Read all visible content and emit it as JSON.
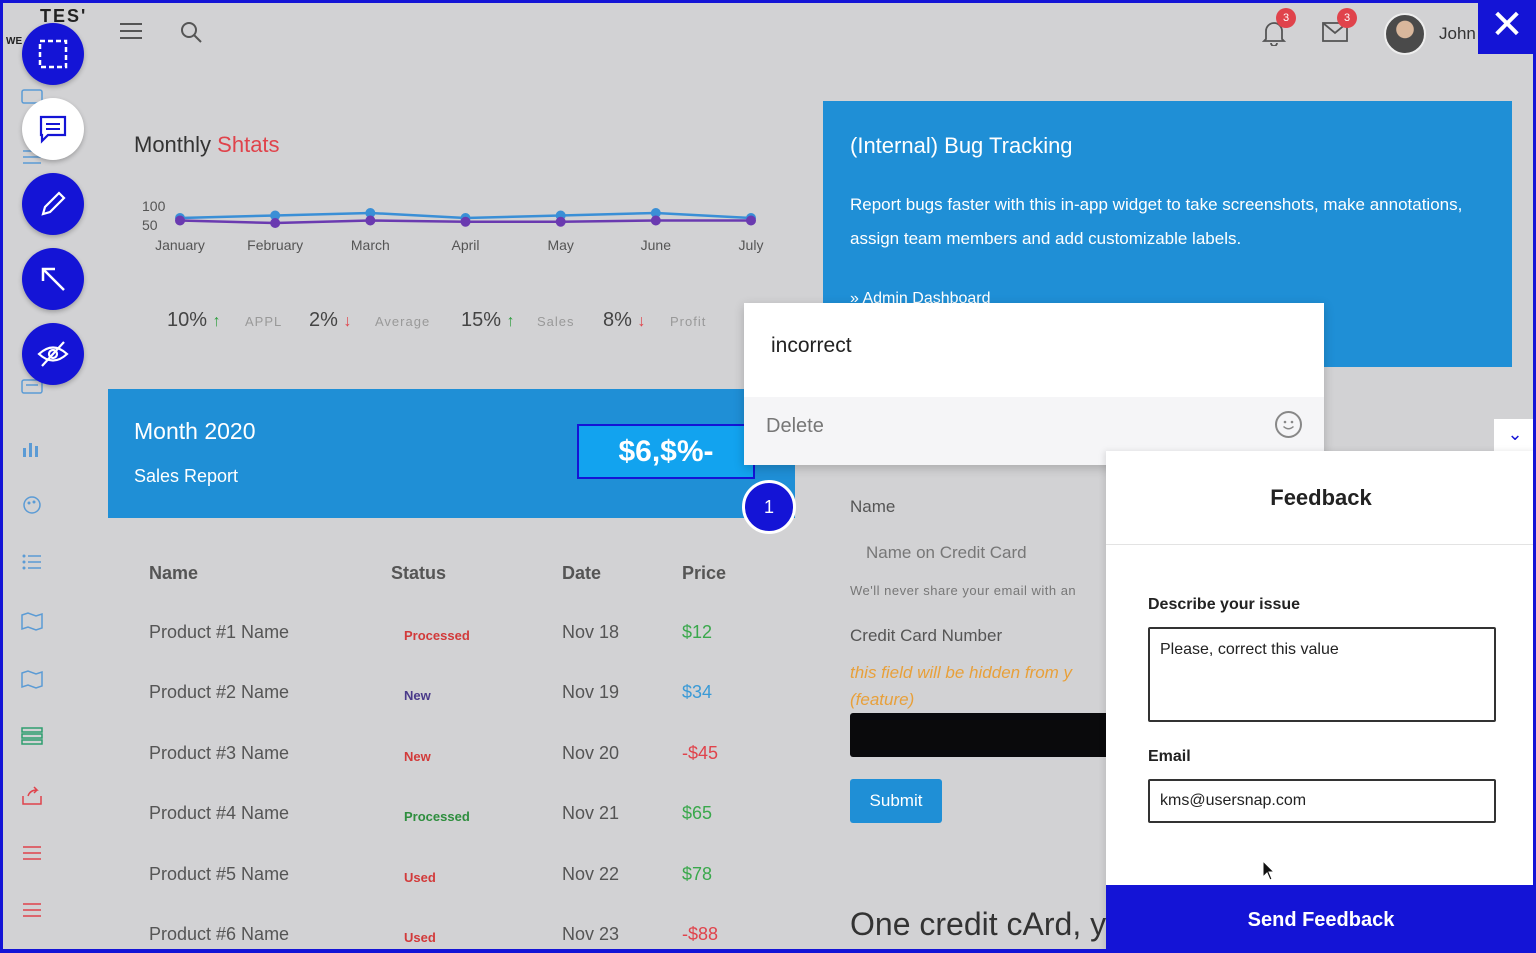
{
  "brand": {
    "name": "TES'",
    "sub": "WE"
  },
  "topbar": {
    "notifications_count": "3",
    "messages_count": "3",
    "user_name": "John"
  },
  "colors": {
    "accent": "#1414d6",
    "card_blue": "#1f8fd6",
    "red": "#e0434b",
    "green": "#2e9e3e",
    "orange": "#e8a03a"
  },
  "tools": [
    "select-area-icon",
    "comment-icon",
    "pencil-icon",
    "arrow-icon",
    "hide-icon"
  ],
  "stats": {
    "title_prefix": "Monthly",
    "title_highlight": "Shtats",
    "kpis": [
      {
        "value": "10%",
        "direction": "up",
        "label": "APPL"
      },
      {
        "value": "2%",
        "direction": "down",
        "label": "Average"
      },
      {
        "value": "15%",
        "direction": "up",
        "label": "Sales"
      },
      {
        "value": "8%",
        "direction": "down",
        "label": "Profit"
      }
    ]
  },
  "chart_data": {
    "type": "line",
    "categories": [
      "January",
      "February",
      "March",
      "April",
      "May",
      "June",
      "July"
    ],
    "yticks": [
      "100",
      "50"
    ],
    "ylim": [
      0,
      200
    ],
    "series": [
      {
        "values": [
          50,
          60,
          70,
          50,
          60,
          70,
          50
        ]
      },
      {
        "values": [
          40,
          30,
          40,
          35,
          35,
          40,
          40
        ]
      }
    ]
  },
  "month": {
    "title": "Month 2020",
    "subtitle": "Sales Report",
    "value": "$6,$%-",
    "marker": "1"
  },
  "table": {
    "headers": [
      "Name",
      "Status",
      "Date",
      "Price"
    ],
    "rows": [
      {
        "name": "Product #1 Name",
        "status": "Processed",
        "status_color": "#d23a3a",
        "date": "Nov 18",
        "price": "$12",
        "price_color": "#3aa84c"
      },
      {
        "name": "Product #2 Name",
        "status": "New",
        "status_color": "#4a3a8a",
        "date": "Nov 19",
        "price": "$34",
        "price_color": "#3a9ad6"
      },
      {
        "name": "Product #3 Name",
        "status": "New",
        "status_color": "#d23a3a",
        "date": "Nov 20",
        "price": "-$45",
        "price_color": "#e0434b"
      },
      {
        "name": "Product #4 Name",
        "status": "Processed",
        "status_color": "#2e8e3e",
        "date": "Nov 21",
        "price": "$65",
        "price_color": "#3aa84c"
      },
      {
        "name": "Product #5 Name",
        "status": "Used",
        "status_color": "#d23a3a",
        "date": "Nov 22",
        "price": "$78",
        "price_color": "#3aa84c"
      },
      {
        "name": "Product #6 Name",
        "status": "Used",
        "status_color": "#d23a3a",
        "date": "Nov 23",
        "price": "-$88",
        "price_color": "#e0434b"
      }
    ]
  },
  "bug": {
    "title": "(Internal) Bug Tracking",
    "text": "Report bugs faster with this in-app widget to take screenshots, make annotations, assign team members and add customizable labels.",
    "link": "» Admin Dashboard"
  },
  "popover": {
    "text": "incorrect",
    "delete_label": "Delete"
  },
  "form": {
    "name_label": "Name",
    "name_placeholder": "Name on Credit Card",
    "help": "We'll never share your email with an",
    "cc_label": "Credit Card Number",
    "warn_1": "this field will be hidden from y",
    "warn_2": "(feature)",
    "submit": "Submit",
    "heading": "One credit cArd, y"
  },
  "feedback": {
    "title": "Feedback",
    "describe_label": "Describe your issue",
    "describe_value": "Please, correct this value",
    "email_label": "Email",
    "email_value": "kms@usersnap.com",
    "send": "Send Feedback"
  }
}
